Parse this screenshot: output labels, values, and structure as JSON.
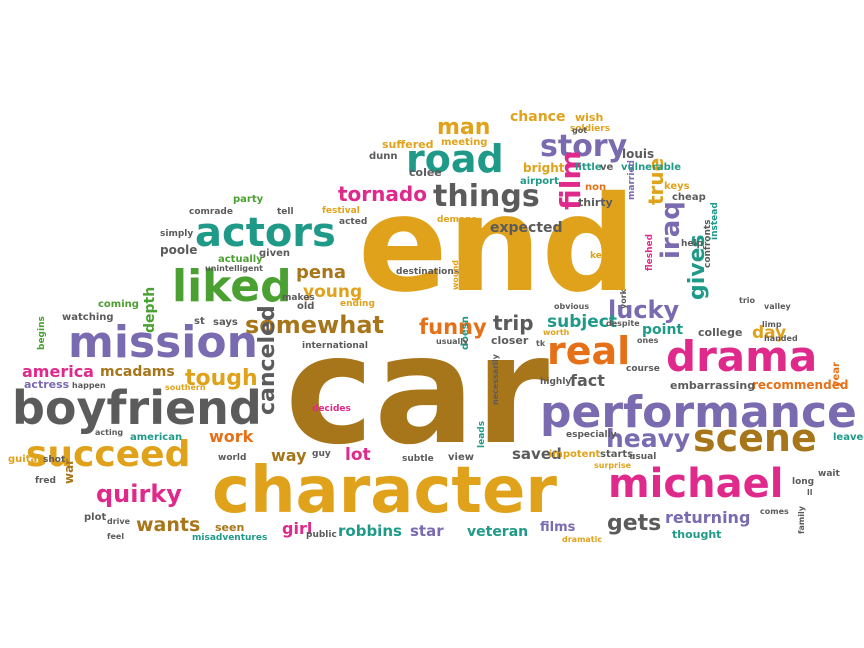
{
  "palette": {
    "gold": "#e0a21a",
    "gray": "#5b5b5b",
    "purple": "#7a6ab0",
    "green": "#4aa031",
    "pink": "#df2a8c",
    "teal": "#1f9a88",
    "orange": "#e57018",
    "brown": "#a8761a"
  },
  "words": [
    {
      "text": "end",
      "color": "gold"
    },
    {
      "text": "car",
      "color": "brown"
    },
    {
      "text": "character",
      "color": "gold"
    },
    {
      "text": "performance",
      "color": "purple"
    },
    {
      "text": "boyfriend",
      "color": "gray"
    },
    {
      "text": "mission",
      "color": "purple"
    },
    {
      "text": "drama",
      "color": "pink"
    },
    {
      "text": "michael",
      "color": "pink"
    },
    {
      "text": "succeed",
      "color": "gold"
    },
    {
      "text": "actors",
      "color": "teal"
    },
    {
      "text": "liked",
      "color": "green"
    },
    {
      "text": "road",
      "color": "teal"
    },
    {
      "text": "real",
      "color": "orange"
    },
    {
      "text": "scene",
      "color": "brown"
    },
    {
      "text": "things",
      "color": "gray"
    },
    {
      "text": "story",
      "color": "purple"
    },
    {
      "text": "somewhat",
      "color": "brown"
    },
    {
      "text": "heavy",
      "color": "purple"
    },
    {
      "text": "quirky",
      "color": "pink"
    },
    {
      "text": "tornado",
      "color": "pink"
    },
    {
      "text": "lucky",
      "color": "purple"
    },
    {
      "text": "canceled",
      "color": "gray"
    },
    {
      "text": "tough",
      "color": "gold"
    },
    {
      "text": "funny",
      "color": "orange"
    },
    {
      "text": "man",
      "color": "gold"
    },
    {
      "text": "film",
      "color": "pink"
    },
    {
      "text": "iraq",
      "color": "purple"
    },
    {
      "text": "gives",
      "color": "teal"
    },
    {
      "text": "true",
      "color": "gold"
    },
    {
      "text": "trip",
      "color": "gray"
    },
    {
      "text": "gets",
      "color": "gray"
    },
    {
      "text": "wants",
      "color": "brown"
    },
    {
      "text": "pena",
      "color": "brown"
    },
    {
      "text": "young",
      "color": "gold"
    },
    {
      "text": "america",
      "color": "pink"
    },
    {
      "text": "mcadams",
      "color": "brown"
    },
    {
      "text": "work",
      "color": "orange"
    },
    {
      "text": "subject",
      "color": "teal"
    },
    {
      "text": "expected",
      "color": "gray"
    },
    {
      "text": "fact",
      "color": "gray"
    },
    {
      "text": "day",
      "color": "gold"
    },
    {
      "text": "point",
      "color": "teal"
    },
    {
      "text": "way",
      "color": "brown"
    },
    {
      "text": "lot",
      "color": "pink"
    },
    {
      "text": "saved",
      "color": "gray"
    },
    {
      "text": "returning",
      "color": "purple"
    },
    {
      "text": "robbins",
      "color": "teal"
    },
    {
      "text": "veteran",
      "color": "teal"
    },
    {
      "text": "films",
      "color": "purple"
    },
    {
      "text": "girl",
      "color": "pink"
    },
    {
      "text": "star",
      "color": "purple"
    },
    {
      "text": "depth",
      "color": "green"
    },
    {
      "text": "chance",
      "color": "gold"
    },
    {
      "text": "recommended",
      "color": "orange"
    },
    {
      "text": "embarrassing",
      "color": "gray"
    },
    {
      "text": "college",
      "color": "gray"
    },
    {
      "text": "thought",
      "color": "teal"
    },
    {
      "text": "seen",
      "color": "brown"
    },
    {
      "text": "bright",
      "color": "gold"
    },
    {
      "text": "meeting",
      "color": "gold"
    },
    {
      "text": "suffered",
      "color": "gold"
    },
    {
      "text": "colee",
      "color": "gray"
    },
    {
      "text": "dunn",
      "color": "gray"
    },
    {
      "text": "louis",
      "color": "gray"
    },
    {
      "text": "vulnerable",
      "color": "teal"
    },
    {
      "text": "soldiers",
      "color": "gold"
    },
    {
      "text": "wish",
      "color": "gold"
    },
    {
      "text": "got",
      "color": "gray"
    },
    {
      "text": "little",
      "color": "teal"
    },
    {
      "text": "ve",
      "color": "gray"
    },
    {
      "text": "airport",
      "color": "teal"
    },
    {
      "text": "non",
      "color": "orange"
    },
    {
      "text": "thirty",
      "color": "gray"
    },
    {
      "text": "married",
      "color": "purple"
    },
    {
      "text": "keys",
      "color": "gold"
    },
    {
      "text": "cheap",
      "color": "gray"
    },
    {
      "text": "instead",
      "color": "teal"
    },
    {
      "text": "confronts",
      "color": "gray"
    },
    {
      "text": "help",
      "color": "gray"
    },
    {
      "text": "fleshed",
      "color": "pink"
    },
    {
      "text": "keeps",
      "color": "gold"
    },
    {
      "text": "party",
      "color": "green"
    },
    {
      "text": "comrade",
      "color": "gray"
    },
    {
      "text": "tell",
      "color": "gray"
    },
    {
      "text": "festival",
      "color": "gold"
    },
    {
      "text": "acted",
      "color": "gray"
    },
    {
      "text": "demons",
      "color": "gold"
    },
    {
      "text": "simply",
      "color": "gray"
    },
    {
      "text": "poole",
      "color": "gray"
    },
    {
      "text": "given",
      "color": "gray"
    },
    {
      "text": "actually",
      "color": "green"
    },
    {
      "text": "unintelligent",
      "color": "gray"
    },
    {
      "text": "makes",
      "color": "gray"
    },
    {
      "text": "destinations",
      "color": "gray"
    },
    {
      "text": "wound",
      "color": "gold"
    },
    {
      "text": "ending",
      "color": "gold"
    },
    {
      "text": "old",
      "color": "gray"
    },
    {
      "text": "coming",
      "color": "green"
    },
    {
      "text": "watching",
      "color": "gray"
    },
    {
      "text": "st",
      "color": "gray"
    },
    {
      "text": "says",
      "color": "gray"
    },
    {
      "text": "international",
      "color": "gray"
    },
    {
      "text": "begins",
      "color": "green"
    },
    {
      "text": "actress",
      "color": "purple"
    },
    {
      "text": "happen",
      "color": "gray"
    },
    {
      "text": "southern",
      "color": "gold"
    },
    {
      "text": "guitar",
      "color": "gold"
    },
    {
      "text": "shot",
      "color": "gray"
    },
    {
      "text": "acting",
      "color": "gray"
    },
    {
      "text": "american",
      "color": "teal"
    },
    {
      "text": "fred",
      "color": "gray"
    },
    {
      "text": "war",
      "color": "brown"
    },
    {
      "text": "plot",
      "color": "gray"
    },
    {
      "text": "drive",
      "color": "gray"
    },
    {
      "text": "feel",
      "color": "gray"
    },
    {
      "text": "world",
      "color": "gray"
    },
    {
      "text": "guy",
      "color": "gray"
    },
    {
      "text": "public",
      "color": "gray"
    },
    {
      "text": "misadventures",
      "color": "teal"
    },
    {
      "text": "decides",
      "color": "pink"
    },
    {
      "text": "subtle",
      "color": "gray"
    },
    {
      "text": "view",
      "color": "gray"
    },
    {
      "text": "leads",
      "color": "teal"
    },
    {
      "text": "necessarily",
      "color": "gray"
    },
    {
      "text": "doesn",
      "color": "teal"
    },
    {
      "text": "closer",
      "color": "gray"
    },
    {
      "text": "usually",
      "color": "gray"
    },
    {
      "text": "worth",
      "color": "gold"
    },
    {
      "text": "obvious",
      "color": "gray"
    },
    {
      "text": "highly",
      "color": "gray"
    },
    {
      "text": "tk",
      "color": "gray"
    },
    {
      "text": "course",
      "color": "gray"
    },
    {
      "text": "ones",
      "color": "gray"
    },
    {
      "text": "despite",
      "color": "gray"
    },
    {
      "text": "especially",
      "color": "gray"
    },
    {
      "text": "impotent",
      "color": "gold"
    },
    {
      "text": "starts",
      "color": "gray"
    },
    {
      "text": "usual",
      "color": "gray"
    },
    {
      "text": "surprise",
      "color": "gold"
    },
    {
      "text": "dramatic",
      "color": "gold"
    },
    {
      "text": "york",
      "color": "gray"
    },
    {
      "text": "trio",
      "color": "gray"
    },
    {
      "text": "valley",
      "color": "gray"
    },
    {
      "text": "limp",
      "color": "gray"
    },
    {
      "text": "handed",
      "color": "gray"
    },
    {
      "text": "year",
      "color": "orange"
    },
    {
      "text": "leave",
      "color": "teal"
    },
    {
      "text": "long",
      "color": "gray"
    },
    {
      "text": "wait",
      "color": "gray"
    },
    {
      "text": "ll",
      "color": "gray"
    },
    {
      "text": "comes",
      "color": "gray"
    },
    {
      "text": "family",
      "color": "gray"
    }
  ]
}
